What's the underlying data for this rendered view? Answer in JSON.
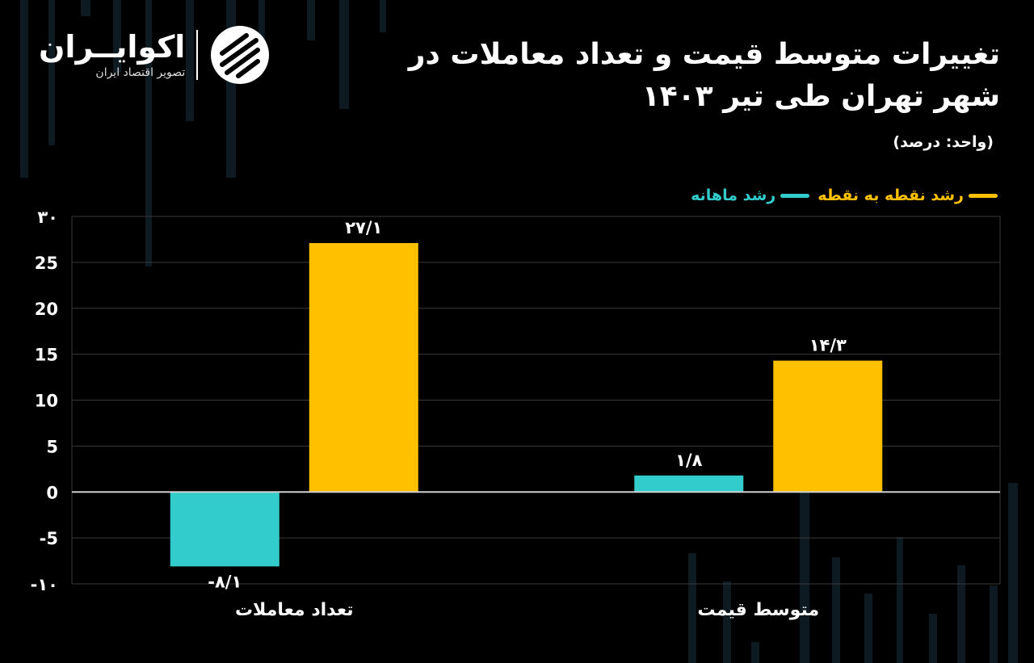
{
  "header": {
    "title": "تغییرات متوسط قیمت و تعداد معاملات در شهر تهران طی تیر ۱۴۰۳",
    "unit": "(واحد: درصد)"
  },
  "logo": {
    "name": "اکوایــران",
    "tagline": "تصویر اقتصاد ایران"
  },
  "colors": {
    "background": "#000000",
    "monthly": "#33CCCC",
    "yearly": "#FFC000",
    "grid": "#3a3a3a",
    "zero_line": "#cfcfcf"
  },
  "chart_data": {
    "type": "bar",
    "categories": [
      "تعداد معاملات",
      "متوسط قیمت"
    ],
    "series": [
      {
        "name": "رشد ماهانه",
        "values": [
          -8.1,
          1.8
        ],
        "labels": [
          "-۸/۱",
          "۱/۸"
        ]
      },
      {
        "name": "رشد نقطه به نقطه",
        "values": [
          27.1,
          14.3
        ],
        "labels": [
          "۲۷/۱",
          "۱۴/۳"
        ]
      }
    ],
    "ylim": [
      -10,
      30
    ],
    "yticks": [
      30,
      25,
      20,
      15,
      10,
      5,
      0,
      -5,
      -10
    ],
    "ytick_labels": [
      "۳۰",
      "25",
      "20",
      "15",
      "10",
      "5",
      "0",
      "-5",
      "-۱۰"
    ],
    "grid": true,
    "legend_position": "top-right"
  }
}
